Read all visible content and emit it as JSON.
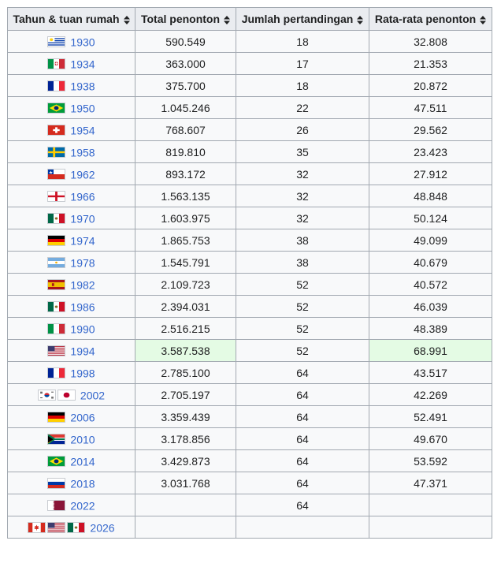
{
  "table": {
    "headers": [
      "Tahun & tuan rumah",
      "Total penonton",
      "Jumlah pertandingan",
      "Rata-rata penonton"
    ],
    "rows": [
      {
        "year": "1930",
        "flags": [
          "uruguay"
        ],
        "total": "590.549",
        "matches": "18",
        "average": "32.808"
      },
      {
        "year": "1934",
        "flags": [
          "italy-kingdom"
        ],
        "total": "363.000",
        "matches": "17",
        "average": "21.353"
      },
      {
        "year": "1938",
        "flags": [
          "france"
        ],
        "total": "375.700",
        "matches": "18",
        "average": "20.872"
      },
      {
        "year": "1950",
        "flags": [
          "brazil"
        ],
        "total": "1.045.246",
        "matches": "22",
        "average": "47.511"
      },
      {
        "year": "1954",
        "flags": [
          "switzerland"
        ],
        "total": "768.607",
        "matches": "26",
        "average": "29.562"
      },
      {
        "year": "1958",
        "flags": [
          "sweden"
        ],
        "total": "819.810",
        "matches": "35",
        "average": "23.423"
      },
      {
        "year": "1962",
        "flags": [
          "chile"
        ],
        "total": "893.172",
        "matches": "32",
        "average": "27.912"
      },
      {
        "year": "1966",
        "flags": [
          "england"
        ],
        "total": "1.563.135",
        "matches": "32",
        "average": "48.848"
      },
      {
        "year": "1970",
        "flags": [
          "mexico"
        ],
        "total": "1.603.975",
        "matches": "32",
        "average": "50.124"
      },
      {
        "year": "1974",
        "flags": [
          "germany"
        ],
        "total": "1.865.753",
        "matches": "38",
        "average": "49.099"
      },
      {
        "year": "1978",
        "flags": [
          "argentina"
        ],
        "total": "1.545.791",
        "matches": "38",
        "average": "40.679"
      },
      {
        "year": "1982",
        "flags": [
          "spain"
        ],
        "total": "2.109.723",
        "matches": "52",
        "average": "40.572"
      },
      {
        "year": "1986",
        "flags": [
          "mexico"
        ],
        "total": "2.394.031",
        "matches": "52",
        "average": "46.039"
      },
      {
        "year": "1990",
        "flags": [
          "italy"
        ],
        "total": "2.516.215",
        "matches": "52",
        "average": "48.389"
      },
      {
        "year": "1994",
        "flags": [
          "usa"
        ],
        "total": "3.587.538",
        "matches": "52",
        "average": "68.991",
        "highlight": [
          "total",
          "average"
        ]
      },
      {
        "year": "1998",
        "flags": [
          "france"
        ],
        "total": "2.785.100",
        "matches": "64",
        "average": "43.517"
      },
      {
        "year": "2002",
        "flags": [
          "korea",
          "japan"
        ],
        "total": "2.705.197",
        "matches": "64",
        "average": "42.269"
      },
      {
        "year": "2006",
        "flags": [
          "germany"
        ],
        "total": "3.359.439",
        "matches": "64",
        "average": "52.491"
      },
      {
        "year": "2010",
        "flags": [
          "south-africa"
        ],
        "total": "3.178.856",
        "matches": "64",
        "average": "49.670"
      },
      {
        "year": "2014",
        "flags": [
          "brazil"
        ],
        "total": "3.429.873",
        "matches": "64",
        "average": "53.592"
      },
      {
        "year": "2018",
        "flags": [
          "russia"
        ],
        "total": "3.031.768",
        "matches": "64",
        "average": "47.371"
      },
      {
        "year": "2022",
        "flags": [
          "qatar"
        ],
        "total": "",
        "matches": "64",
        "average": ""
      },
      {
        "year": "2026",
        "flags": [
          "canada",
          "usa",
          "mexico"
        ],
        "total": "",
        "matches": "",
        "average": ""
      }
    ]
  },
  "colors": {
    "header_bg": "#eaecf0",
    "cell_bg": "#f8f9fa",
    "border": "#a2a9b1",
    "link": "#3366cc",
    "highlight": "#e4fbe4"
  }
}
